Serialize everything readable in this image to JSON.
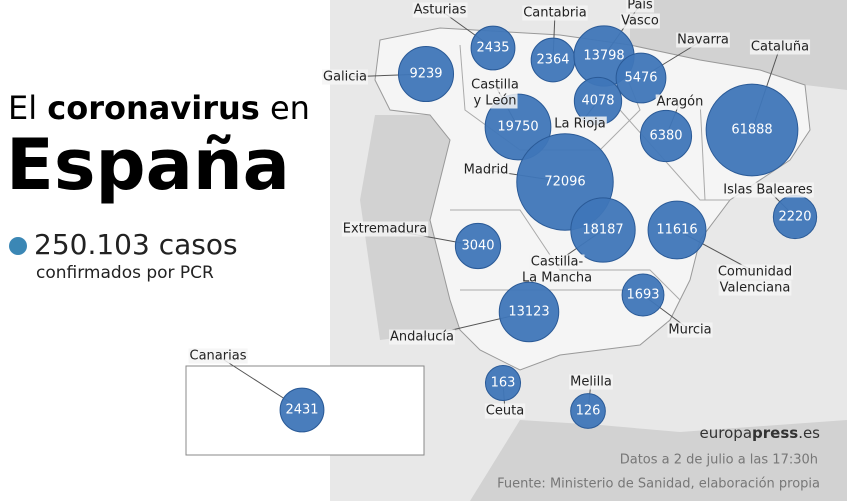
{
  "header": {
    "title_start": "El",
    "title_bold": "coronavirus",
    "title_end": "en",
    "country": "España",
    "total": "250.103 casos",
    "total_sub": "confirmados por PCR"
  },
  "regions": [
    {
      "name": "Galicia",
      "value": 9239
    },
    {
      "name": "Asturias",
      "value": 2435
    },
    {
      "name": "Cantabria",
      "value": 2364
    },
    {
      "name": [
        "País",
        "Vasco"
      ],
      "value": 13798
    },
    {
      "name": "Navarra",
      "value": 5476
    },
    {
      "name": "Cataluña",
      "value": 61888
    },
    {
      "name": [
        "Castilla",
        "y León"
      ],
      "value": 19750
    },
    {
      "name": "La Rioja",
      "value": 4078
    },
    {
      "name": "Aragón",
      "value": 6380
    },
    {
      "name": "Madrid",
      "value": 72096
    },
    {
      "name": "Islas Baleares",
      "value": 2220
    },
    {
      "name": "Extremadura",
      "value": 3040
    },
    {
      "name": [
        "Castilla-",
        "La Mancha"
      ],
      "value": 18187
    },
    {
      "name": [
        "Comunidad",
        "Valenciana"
      ],
      "value": 11616
    },
    {
      "name": "Murcia",
      "value": 1693
    },
    {
      "name": "Andalucía",
      "value": 13123
    },
    {
      "name": "Ceuta",
      "value": 163
    },
    {
      "name": "Melilla",
      "value": 126
    },
    {
      "name": "Canarias",
      "value": 2431
    }
  ],
  "footer": {
    "brand_a": "europa",
    "brand_b": "press",
    "brand_c": ".es",
    "date": "Datos a 2 de julio a las 17:30h",
    "source": "Fuente: Ministerio de Sanidad, elaboración propia"
  }
}
